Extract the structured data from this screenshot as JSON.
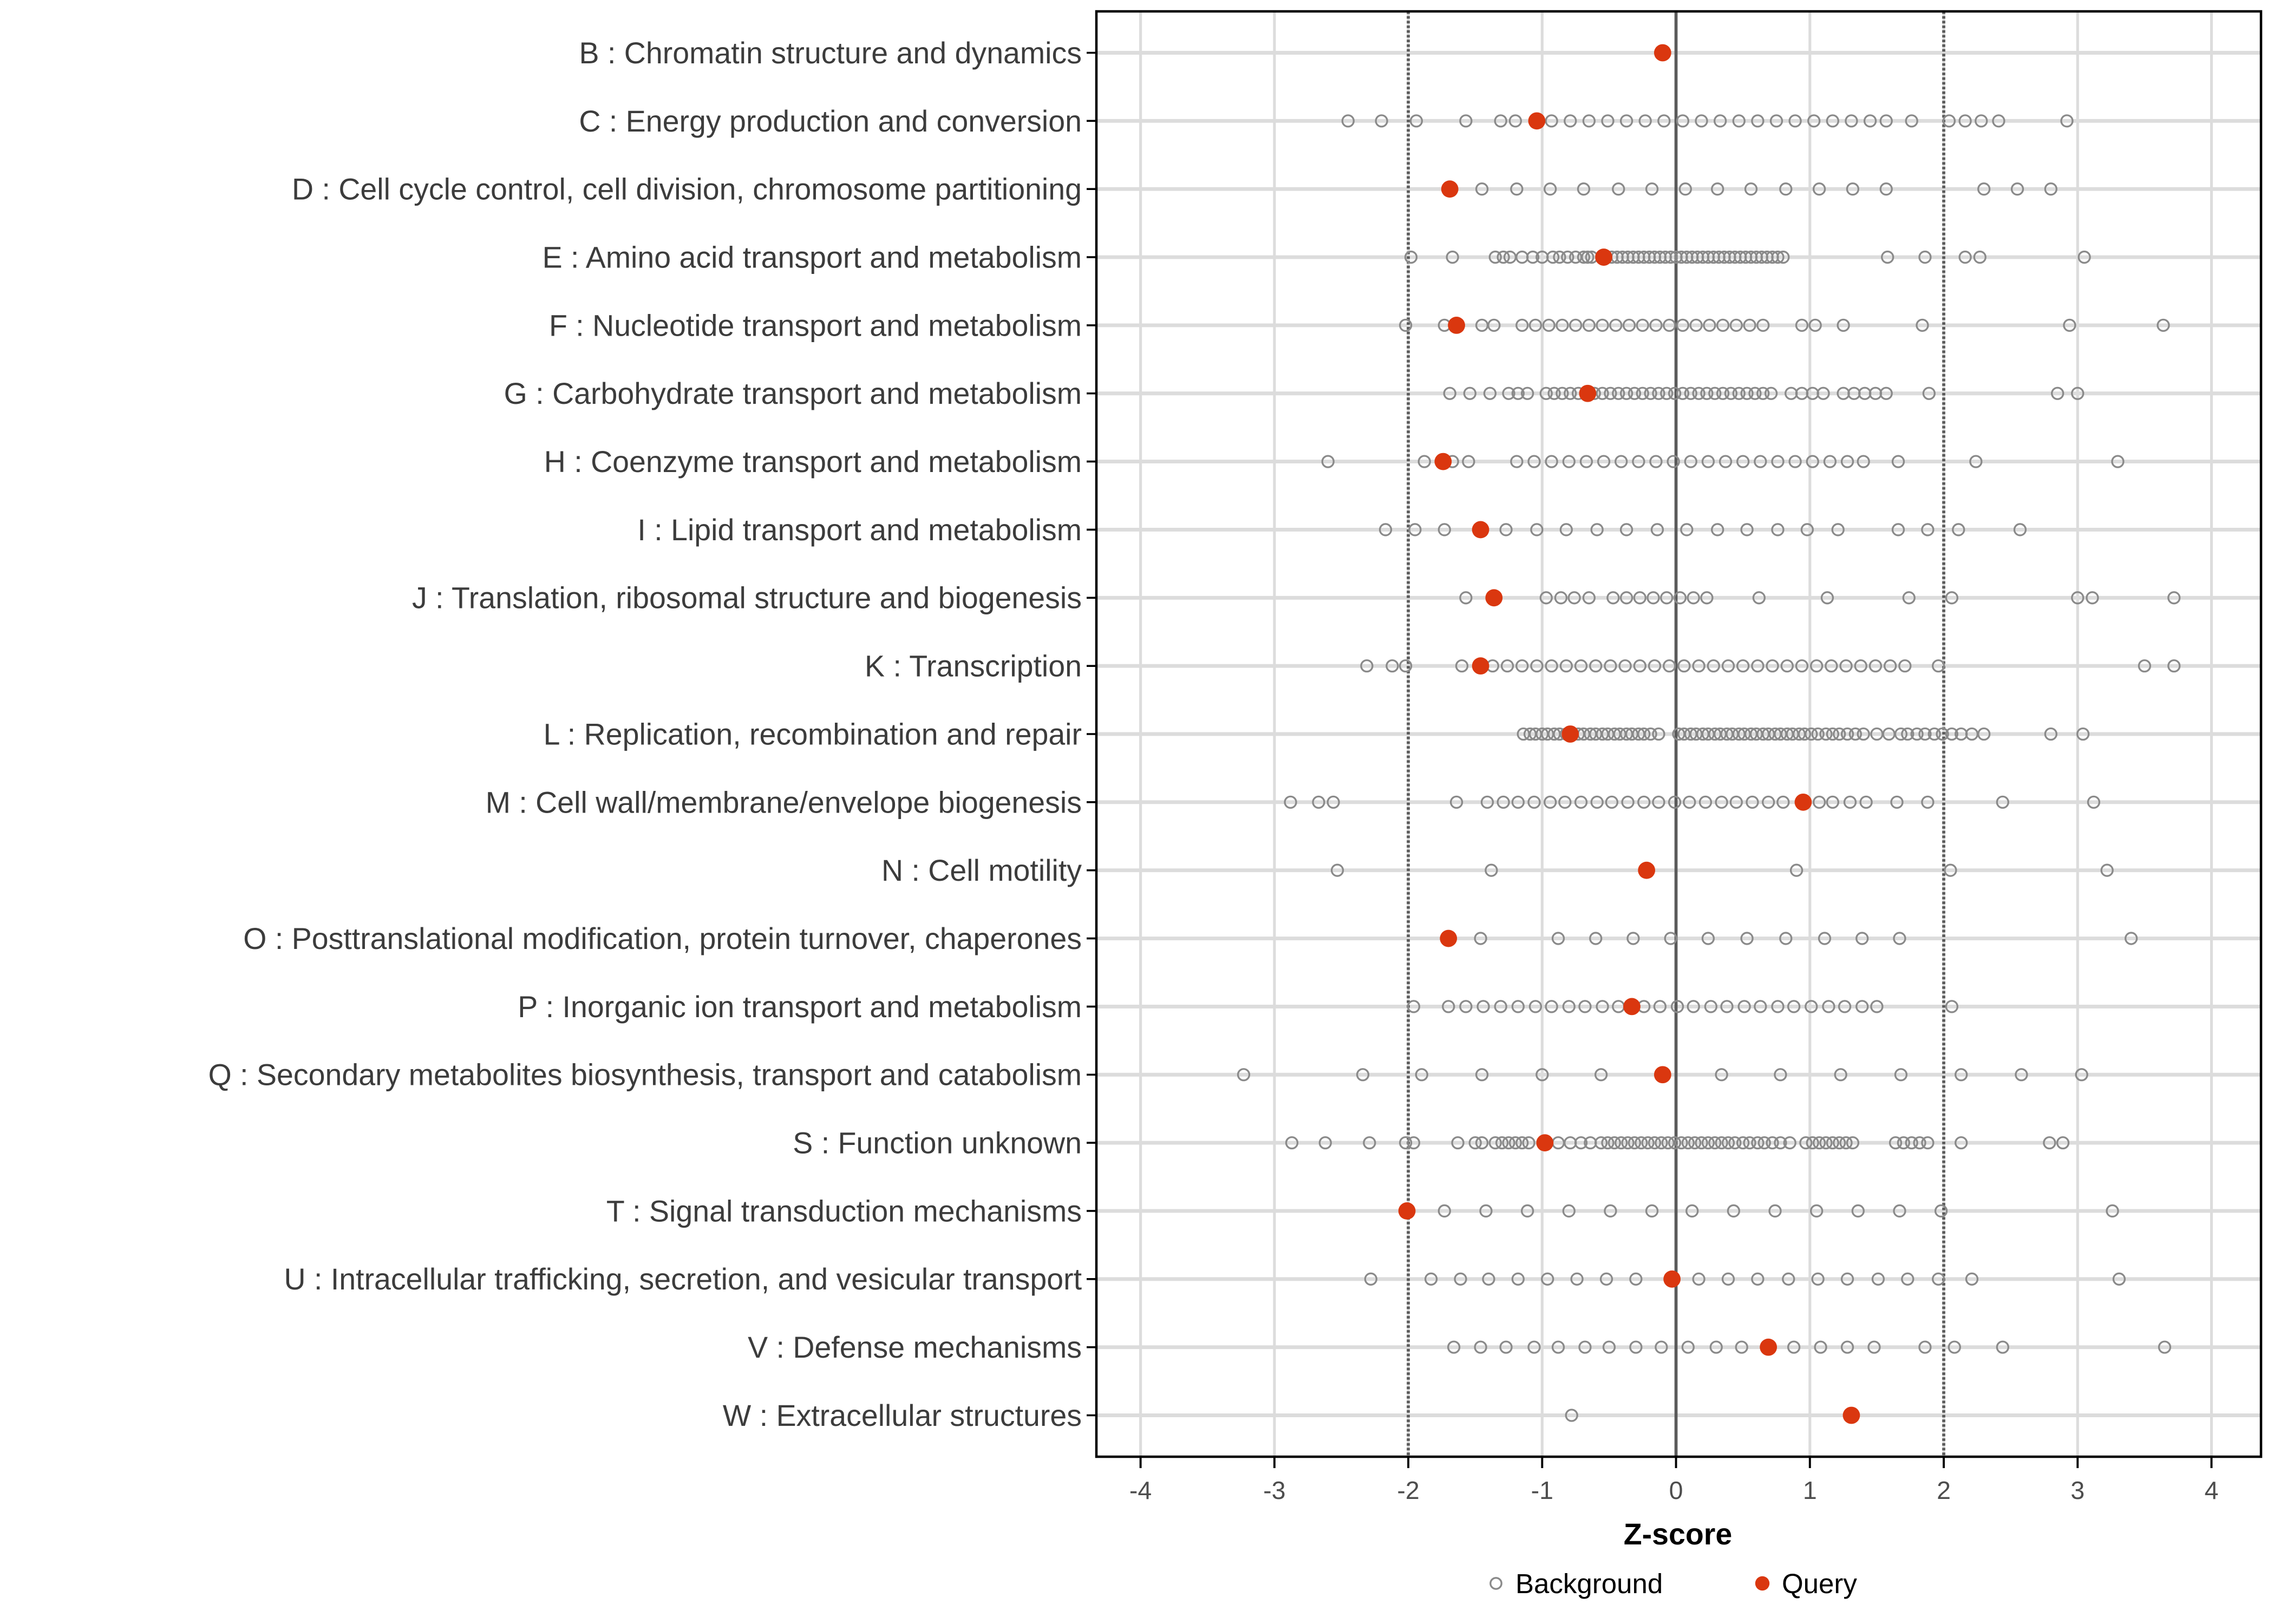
{
  "colors": {
    "query": "#DA370F",
    "background_stroke": "#8A8A8A",
    "grid": "#DCDCDC",
    "guide": "#5A5A5A",
    "axis_text": "#4D4D4D",
    "category_text": "#3C3C3C",
    "panel_border": "#000000",
    "legend_text": "#000000"
  },
  "chart_data": {
    "type": "scatter",
    "title": "",
    "xlabel": "Z-score",
    "xlim": [
      -4.33,
      4.37
    ],
    "x_ticks": [
      -4,
      -3,
      -2,
      -1,
      0,
      1,
      2,
      3,
      4
    ],
    "guides": {
      "solid_at": 0,
      "dashed_at": [
        -2,
        2
      ]
    },
    "grid": true,
    "legend_position": "bottom",
    "legend": [
      {
        "label": "Background",
        "marker": "open-circle"
      },
      {
        "label": "Query",
        "marker": "filled-circle"
      }
    ],
    "rows": [
      {
        "code": "B",
        "label": "B : Chromatin structure and dynamics",
        "query": -0.1,
        "background": []
      },
      {
        "code": "C",
        "label": "C : Energy production and conversion",
        "query": -1.04,
        "background": [
          -2.45,
          -2.2,
          -1.94,
          -1.57,
          -1.31,
          -1.2,
          -0.93,
          -0.79,
          -0.65,
          -0.51,
          -0.37,
          -0.23,
          -0.09,
          0.05,
          0.19,
          0.33,
          0.47,
          0.61,
          0.75,
          0.89,
          1.03,
          1.17,
          1.31,
          1.45,
          1.57,
          1.76,
          2.04,
          2.16,
          2.28,
          2.41,
          2.92
        ]
      },
      {
        "code": "D",
        "label": "D : Cell cycle control, cell division, chromosome partitioning",
        "query": -1.69,
        "background": [
          -1.45,
          -1.19,
          -0.94,
          -0.69,
          -0.43,
          -0.18,
          0.07,
          0.31,
          0.56,
          0.82,
          1.07,
          1.32,
          1.57,
          2.3,
          2.55,
          2.8
        ]
      },
      {
        "code": "E",
        "label": "E : Amino acid transport and metabolism",
        "query": -0.54,
        "background": [
          -1.98,
          -1.67,
          -1.35,
          -1.29,
          -1.24,
          -1.15,
          -1.07,
          -1.0,
          -0.92,
          -0.87,
          -0.81,
          -0.75,
          -0.69,
          -0.66,
          -0.63,
          -0.48,
          -0.44,
          -0.4,
          -0.36,
          -0.32,
          -0.28,
          -0.24,
          -0.2,
          -0.16,
          -0.12,
          -0.08,
          -0.04,
          0.0,
          0.04,
          0.08,
          0.12,
          0.16,
          0.2,
          0.24,
          0.28,
          0.32,
          0.36,
          0.4,
          0.44,
          0.48,
          0.52,
          0.56,
          0.6,
          0.64,
          0.68,
          0.72,
          0.76,
          0.8,
          1.58,
          1.86,
          2.16,
          2.27,
          3.05
        ]
      },
      {
        "code": "F",
        "label": "F : Nucleotide transport and metabolism",
        "query": -1.64,
        "background": [
          -2.02,
          -1.73,
          -1.45,
          -1.36,
          -1.15,
          -1.05,
          -0.95,
          -0.85,
          -0.75,
          -0.65,
          -0.55,
          -0.45,
          -0.35,
          -0.25,
          -0.15,
          -0.05,
          0.05,
          0.15,
          0.25,
          0.35,
          0.45,
          0.55,
          0.65,
          0.94,
          1.04,
          1.25,
          1.84,
          2.94,
          3.64
        ]
      },
      {
        "code": "G",
        "label": "G : Carbohydrate transport and metabolism",
        "query": -0.66,
        "background": [
          -1.69,
          -1.54,
          -1.39,
          -1.25,
          -1.18,
          -1.11,
          -0.97,
          -0.91,
          -0.85,
          -0.79,
          -0.73,
          -0.67,
          -0.61,
          -0.55,
          -0.49,
          -0.43,
          -0.37,
          -0.31,
          -0.25,
          -0.19,
          -0.13,
          -0.07,
          -0.01,
          0.05,
          0.11,
          0.17,
          0.23,
          0.29,
          0.35,
          0.41,
          0.47,
          0.53,
          0.59,
          0.65,
          0.71,
          0.86,
          0.94,
          1.02,
          1.1,
          1.25,
          1.33,
          1.41,
          1.49,
          1.57,
          1.89,
          2.85,
          3.0
        ]
      },
      {
        "code": "H",
        "label": "H : Coenzyme transport and metabolism",
        "query": -1.74,
        "background": [
          -2.6,
          -1.88,
          -1.67,
          -1.55,
          -1.19,
          -1.06,
          -0.93,
          -0.8,
          -0.67,
          -0.54,
          -0.41,
          -0.28,
          -0.15,
          -0.02,
          0.11,
          0.24,
          0.37,
          0.5,
          0.63,
          0.76,
          0.89,
          1.02,
          1.15,
          1.28,
          1.4,
          1.66,
          2.24,
          3.3
        ]
      },
      {
        "code": "I",
        "label": "I : Lipid transport and metabolism",
        "query": -1.46,
        "background": [
          -2.17,
          -1.95,
          -1.73,
          -1.27,
          -1.04,
          -0.82,
          -0.59,
          -0.37,
          -0.14,
          0.08,
          0.31,
          0.53,
          0.76,
          0.98,
          1.21,
          1.66,
          1.88,
          2.11,
          2.57
        ]
      },
      {
        "code": "J",
        "label": "J : Translation, ribosomal structure and biogenesis",
        "query": -1.36,
        "background": [
          -1.57,
          -0.97,
          -0.86,
          -0.76,
          -0.65,
          -0.47,
          -0.37,
          -0.27,
          -0.17,
          -0.07,
          0.03,
          0.13,
          0.23,
          0.62,
          1.13,
          1.74,
          2.06,
          3.0,
          3.11,
          3.72
        ]
      },
      {
        "code": "K",
        "label": "K : Transcription",
        "query": -1.46,
        "background": [
          -2.31,
          -2.12,
          -2.02,
          -1.6,
          -1.37,
          -1.26,
          -1.15,
          -1.04,
          -0.93,
          -0.82,
          -0.71,
          -0.6,
          -0.49,
          -0.38,
          -0.27,
          -0.16,
          -0.05,
          0.06,
          0.17,
          0.28,
          0.39,
          0.5,
          0.61,
          0.72,
          0.83,
          0.94,
          1.05,
          1.16,
          1.27,
          1.38,
          1.49,
          1.6,
          1.71,
          1.96,
          3.5,
          3.72
        ]
      },
      {
        "code": "L",
        "label": "L : Replication, recombination and repair",
        "query": -0.79,
        "background": [
          -1.14,
          -1.09,
          -1.05,
          -1.0,
          -0.96,
          -0.91,
          -0.87,
          -0.82,
          -0.78,
          -0.73,
          -0.69,
          -0.64,
          -0.6,
          -0.55,
          -0.51,
          -0.46,
          -0.42,
          -0.37,
          -0.33,
          -0.28,
          -0.24,
          -0.19,
          -0.13,
          0.02,
          0.06,
          0.11,
          0.15,
          0.2,
          0.24,
          0.29,
          0.33,
          0.38,
          0.42,
          0.47,
          0.51,
          0.56,
          0.6,
          0.65,
          0.69,
          0.74,
          0.78,
          0.83,
          0.87,
          0.92,
          0.96,
          1.01,
          1.06,
          1.12,
          1.17,
          1.22,
          1.28,
          1.34,
          1.4,
          1.5,
          1.59,
          1.68,
          1.73,
          1.8,
          1.86,
          1.93,
          1.99,
          2.06,
          2.13,
          2.21,
          2.3,
          2.8,
          3.04
        ]
      },
      {
        "code": "M",
        "label": "M : Cell wall/membrane/envelope biogenesis",
        "query": 0.95,
        "background": [
          -2.88,
          -2.67,
          -2.56,
          -1.64,
          -1.41,
          -1.29,
          -1.18,
          -1.06,
          -0.94,
          -0.83,
          -0.71,
          -0.59,
          -0.48,
          -0.36,
          -0.24,
          -0.13,
          -0.01,
          0.1,
          0.22,
          0.34,
          0.45,
          0.57,
          0.69,
          0.8,
          1.07,
          1.17,
          1.3,
          1.42,
          1.65,
          1.88,
          2.44,
          3.12
        ]
      },
      {
        "code": "N",
        "label": "N : Cell motility",
        "query": -0.22,
        "background": [
          -2.53,
          -1.38,
          0.9,
          2.05,
          3.22
        ]
      },
      {
        "code": "O",
        "label": "O : Posttranslational modification, protein turnover, chaperones",
        "query": -1.7,
        "background": [
          -1.46,
          -0.88,
          -0.6,
          -0.32,
          -0.04,
          0.24,
          0.53,
          0.82,
          1.11,
          1.39,
          1.67,
          3.4
        ]
      },
      {
        "code": "P",
        "label": "P : Inorganic ion transport and metabolism",
        "query": -0.33,
        "background": [
          -1.96,
          -1.7,
          -1.57,
          -1.44,
          -1.31,
          -1.18,
          -1.05,
          -0.93,
          -0.8,
          -0.68,
          -0.55,
          -0.43,
          -0.24,
          -0.12,
          0.01,
          0.13,
          0.26,
          0.38,
          0.51,
          0.63,
          0.76,
          0.88,
          1.01,
          1.14,
          1.26,
          1.39,
          1.5,
          2.06
        ]
      },
      {
        "code": "Q",
        "label": "Q : Secondary metabolites biosynthesis, transport and catabolism",
        "query": -0.1,
        "background": [
          -3.23,
          -2.34,
          -1.9,
          -1.45,
          -1.0,
          -0.56,
          0.34,
          0.78,
          1.23,
          1.68,
          2.13,
          2.58,
          3.03
        ]
      },
      {
        "code": "S",
        "label": "S : Function unknown",
        "query": -0.98,
        "background": [
          -2.87,
          -2.62,
          -2.29,
          -2.02,
          -1.96,
          -1.63,
          -1.5,
          -1.45,
          -1.35,
          -1.3,
          -1.25,
          -1.2,
          -1.15,
          -1.1,
          -0.88,
          -0.79,
          -0.71,
          -0.64,
          -0.56,
          -0.51,
          -0.46,
          -0.41,
          -0.36,
          -0.31,
          -0.26,
          -0.21,
          -0.16,
          -0.11,
          -0.06,
          -0.01,
          0.04,
          0.09,
          0.14,
          0.19,
          0.24,
          0.29,
          0.34,
          0.39,
          0.44,
          0.5,
          0.55,
          0.61,
          0.66,
          0.72,
          0.78,
          0.85,
          0.97,
          1.02,
          1.07,
          1.12,
          1.17,
          1.22,
          1.27,
          1.32,
          1.64,
          1.7,
          1.76,
          1.82,
          1.88,
          2.13,
          2.79,
          2.89
        ]
      },
      {
        "code": "T",
        "label": "T : Signal transduction mechanisms",
        "query": -2.01,
        "background": [
          -1.73,
          -1.42,
          -1.11,
          -0.8,
          -0.49,
          -0.18,
          0.12,
          0.43,
          0.74,
          1.05,
          1.36,
          1.67,
          1.98,
          3.26
        ]
      },
      {
        "code": "U",
        "label": "U : Intracellular trafficking, secretion, and vesicular transport",
        "query": -0.03,
        "background": [
          -2.28,
          -1.83,
          -1.61,
          -1.4,
          -1.18,
          -0.96,
          -0.74,
          -0.52,
          -0.3,
          0.17,
          0.39,
          0.61,
          0.84,
          1.06,
          1.28,
          1.51,
          1.73,
          1.96,
          2.21,
          3.31
        ]
      },
      {
        "code": "V",
        "label": "V : Defense mechanisms",
        "query": 0.69,
        "background": [
          -1.66,
          -1.46,
          -1.27,
          -1.06,
          -0.88,
          -0.68,
          -0.5,
          -0.3,
          -0.11,
          0.09,
          0.3,
          0.49,
          0.88,
          1.08,
          1.28,
          1.48,
          1.86,
          2.08,
          2.44,
          3.65
        ]
      },
      {
        "code": "W",
        "label": "W : Extracellular structures",
        "query": 1.31,
        "background": [
          -0.78
        ]
      }
    ]
  }
}
